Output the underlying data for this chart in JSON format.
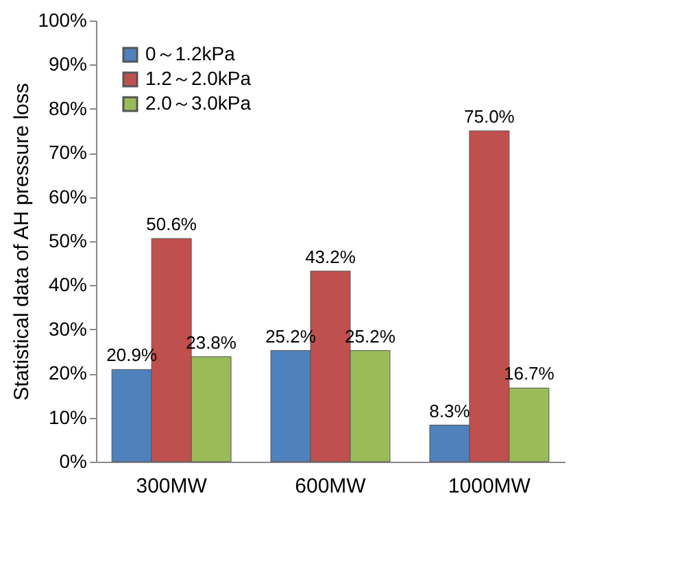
{
  "chart_data": {
    "type": "bar",
    "ylabel": "Statistical data of AH pressure loss",
    "categories": [
      "300MW",
      "600MW",
      "1000MW"
    ],
    "series": [
      {
        "name": "0～1.2kPa",
        "color": "#4f81bd",
        "values": [
          20.9,
          25.2,
          8.3
        ],
        "value_labels": [
          "20.9%",
          "25.2%",
          "8.3%"
        ]
      },
      {
        "name": "1.2～2.0kPa",
        "color": "#c0504d",
        "values": [
          50.6,
          43.2,
          75.0
        ],
        "value_labels": [
          "50.6%",
          "43.2%",
          "75.0%"
        ]
      },
      {
        "name": "2.0～3.0kPa",
        "color": "#9bbb59",
        "values": [
          23.8,
          25.2,
          16.7
        ],
        "value_labels": [
          "23.8%",
          "25.2%",
          "16.7%"
        ]
      }
    ],
    "ylim": [
      0,
      100
    ],
    "yticks": [
      {
        "value": 0,
        "label": "0%"
      },
      {
        "value": 10,
        "label": "10%"
      },
      {
        "value": 20,
        "label": "20%"
      },
      {
        "value": 30,
        "label": "30%"
      },
      {
        "value": 40,
        "label": "40%"
      },
      {
        "value": 50,
        "label": "50%"
      },
      {
        "value": 60,
        "label": "60%"
      },
      {
        "value": 70,
        "label": "70%"
      },
      {
        "value": 80,
        "label": "80%"
      },
      {
        "value": 90,
        "label": "90%"
      },
      {
        "value": 100,
        "label": "100%"
      }
    ],
    "grid": false,
    "legend": "top left"
  }
}
